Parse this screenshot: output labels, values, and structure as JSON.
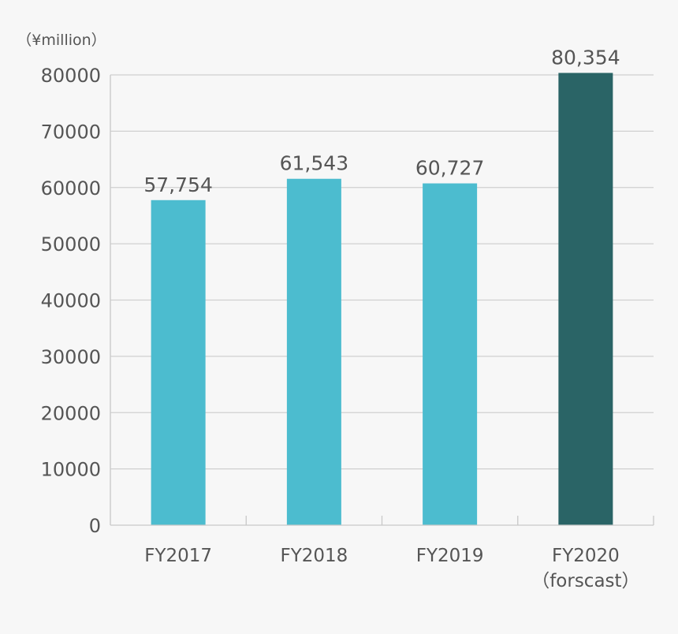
{
  "chart_data": {
    "type": "bar",
    "unit_label": "（¥million）",
    "categories": [
      [
        "FY2017"
      ],
      [
        "FY2018"
      ],
      [
        "FY2019"
      ],
      [
        "FY2020",
        "（forscast）"
      ]
    ],
    "values": [
      57754,
      61543,
      60727,
      80354
    ],
    "value_labels": [
      "57,754",
      "61,543",
      "60,727",
      "80,354"
    ],
    "bar_colors": [
      "#4cbccf",
      "#4cbccf",
      "#4cbccf",
      "#2a6466"
    ],
    "ylim": [
      0,
      80000
    ],
    "yticks": [
      0,
      10000,
      20000,
      30000,
      40000,
      50000,
      60000,
      70000,
      80000
    ],
    "ytick_labels": [
      "0",
      "10000",
      "20000",
      "30000",
      "40000",
      "50000",
      "60000",
      "70000",
      "80000"
    ],
    "grid": true,
    "title": "",
    "xlabel": "",
    "ylabel": ""
  }
}
